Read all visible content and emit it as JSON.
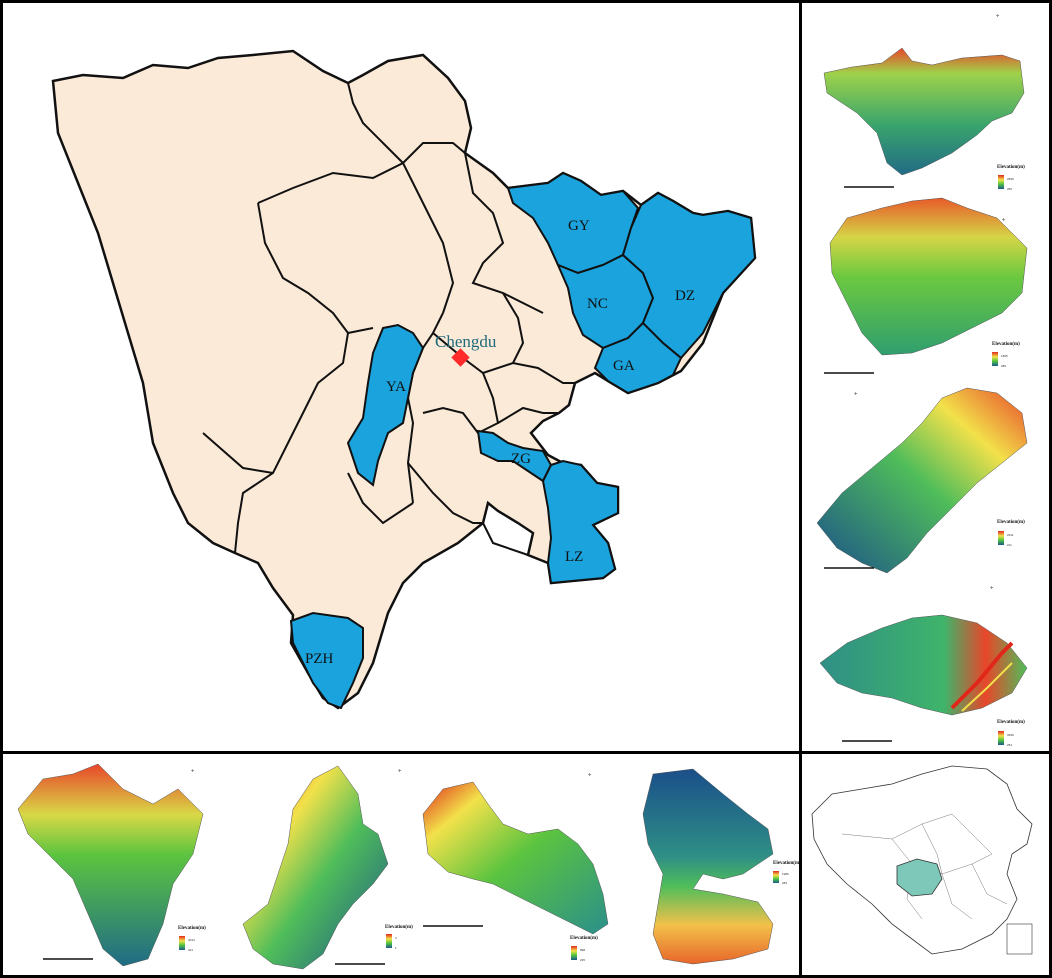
{
  "main_map": {
    "capital": "Chengdu",
    "highlighted_cities": [
      "GY",
      "NC",
      "DZ",
      "GA",
      "YA",
      "ZG",
      "LZ",
      "PZH"
    ],
    "colors": {
      "province_fill": "#fbead8",
      "highlight_fill": "#1aa3dc",
      "capital_marker": "#ff2a2a"
    }
  },
  "dem_legend": {
    "title": "Elevation(m)",
    "panels": [
      {
        "high": "2839",
        "low": "256"
      },
      {
        "high": "1865",
        "low": "289"
      },
      {
        "high": "2911",
        "low": "211"
      },
      {
        "high": "3499",
        "low": "254"
      },
      {
        "high": "4034",
        "low": "321"
      },
      {
        "high": "3",
        "low": "1"
      },
      {
        "high": "898",
        "low": "235"
      },
      {
        "high": "1986",
        "low": "283"
      }
    ]
  },
  "colors": {
    "ramp_high": "#e0281a",
    "ramp_mid1": "#f2e14a",
    "ramp_mid2": "#52c53b",
    "ramp_low": "#1a5a8e"
  }
}
